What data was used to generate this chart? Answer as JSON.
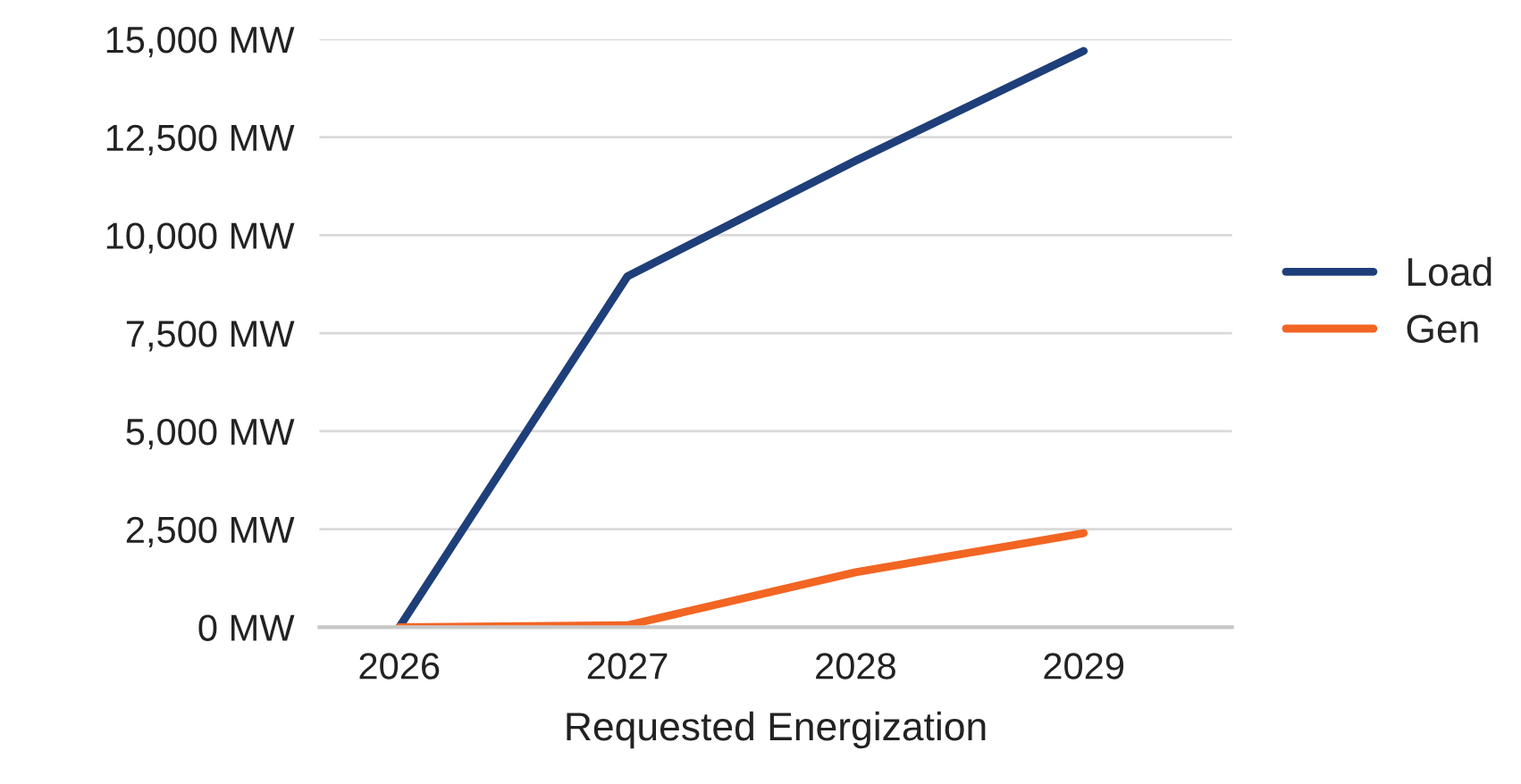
{
  "chart_data": {
    "type": "line",
    "xlabel": "Requested Energization",
    "categories": [
      "2026",
      "2027",
      "2028",
      "2029"
    ],
    "series": [
      {
        "name": "Load",
        "color": "#1f3f7a",
        "values": [
          0,
          8950,
          11900,
          14700
        ]
      },
      {
        "name": "Gen",
        "color": "#f26522",
        "values": [
          0,
          50,
          1400,
          2400
        ]
      }
    ],
    "ylim": [
      0,
      15000
    ],
    "yticks": [
      {
        "value": 0,
        "label": "0 MW"
      },
      {
        "value": 2500,
        "label": "2,500 MW"
      },
      {
        "value": 5000,
        "label": "5,000 MW"
      },
      {
        "value": 7500,
        "label": "7,500 MW"
      },
      {
        "value": 10000,
        "label": "10,000 MW"
      },
      {
        "value": 12500,
        "label": "12,500 MW"
      },
      {
        "value": 15000,
        "label": "15,000 MW"
      }
    ],
    "grid": "y",
    "legend": "right",
    "marker": "none",
    "line_style": "solid"
  }
}
